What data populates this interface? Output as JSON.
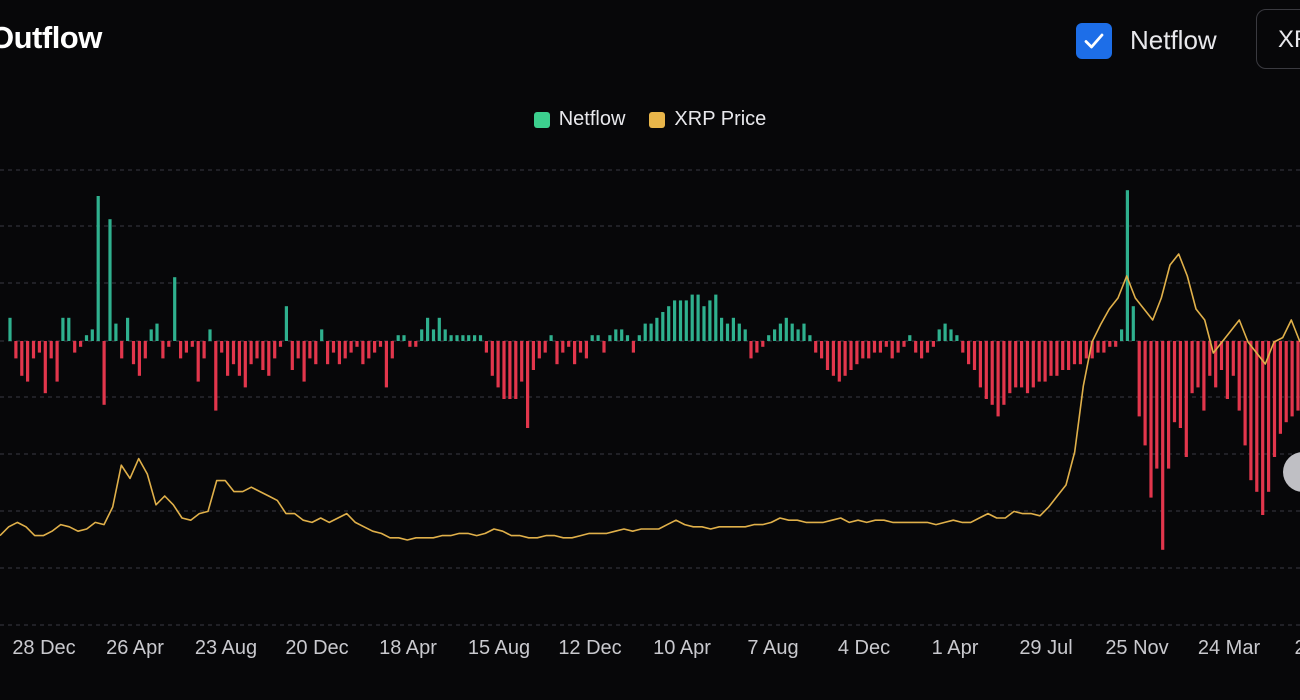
{
  "header": {
    "title": "Outflow",
    "checkbox_label": "Netflow",
    "checkbox_checked": true,
    "dropdown_value": "XRP"
  },
  "legend": [
    {
      "label": "Netflow",
      "color": "#3ccf8e"
    },
    {
      "label": "XRP Price",
      "color": "#e8b54a"
    }
  ],
  "colors": {
    "inflow": "#2fb08e",
    "outflow": "#e2364c",
    "price": "#e0b04a",
    "grid": "#3a3a42",
    "background": "#070709"
  },
  "chart_data": {
    "type": "bar",
    "title": "",
    "xlabel": "",
    "ylabel": "",
    "grid": true,
    "legend_position": "top-center",
    "x_tick_labels": [
      "28 Dec",
      "26 Apr",
      "23 Aug",
      "20 Dec",
      "18 Apr",
      "15 Aug",
      "12 Dec",
      "10 Apr",
      "7 Aug",
      "4 Dec",
      "1 Apr",
      "29 Jul",
      "25 Nov",
      "24 Mar",
      "2"
    ],
    "ylim": [
      -40,
      30
    ],
    "series": [
      {
        "name": "Netflow",
        "type": "bar",
        "values": [
          4,
          -3,
          -6,
          -7,
          -3,
          -2,
          -9,
          -3,
          -7,
          4,
          4,
          -2,
          -1,
          1,
          2,
          25,
          -11,
          21,
          3,
          -3,
          4,
          -4,
          -6,
          -3,
          2,
          3,
          -3,
          -1,
          11,
          -3,
          -2,
          -1,
          -7,
          -3,
          2,
          -12,
          -2,
          -6,
          -4,
          -6,
          -8,
          -4,
          -3,
          -5,
          -6,
          -3,
          -1,
          6,
          -5,
          -3,
          -7,
          -3,
          -4,
          2,
          -4,
          -2,
          -4,
          -3,
          -2,
          -1,
          -4,
          -3,
          -2,
          -1,
          -8,
          -3,
          1,
          1,
          -1,
          -1,
          2,
          4,
          2,
          4,
          2,
          1,
          1,
          1,
          1,
          1,
          1,
          -2,
          -6,
          -8,
          -10,
          -10,
          -10,
          -7,
          -15,
          -5,
          -3,
          -2,
          1,
          -4,
          -2,
          -1,
          -4,
          -2,
          -3,
          1,
          1,
          -2,
          1,
          2,
          2,
          1,
          -2,
          1,
          3,
          3,
          4,
          5,
          6,
          7,
          7,
          7,
          8,
          8,
          6,
          7,
          8,
          4,
          3,
          4,
          3,
          2,
          -3,
          -2,
          -1,
          1,
          2,
          3,
          4,
          3,
          2,
          3,
          1,
          -2,
          -3,
          -5,
          -6,
          -7,
          -6,
          -5,
          -4,
          -3,
          -3,
          -2,
          -2,
          -1,
          -3,
          -2,
          -1,
          1,
          -2,
          -3,
          -2,
          -1,
          2,
          3,
          2,
          1,
          -2,
          -4,
          -5,
          -8,
          -10,
          -11,
          -13,
          -11,
          -9,
          -8,
          -8,
          -9,
          -8,
          -7,
          -7,
          -6,
          -6,
          -5,
          -5,
          -4,
          -4,
          -3,
          -3,
          -2,
          -2,
          -1,
          -1,
          2,
          26,
          6,
          -13,
          -18,
          -27,
          -22,
          -36,
          -22,
          -14,
          -15,
          -20,
          -9,
          -8,
          -12,
          -6,
          -8,
          -5,
          -10,
          -6,
          -12,
          -18,
          -24,
          -26,
          -30,
          -26,
          -20,
          -16,
          -14,
          -13,
          -12
        ]
      },
      {
        "name": "XRP Price",
        "type": "line",
        "values": [
          0.42,
          0.46,
          0.48,
          0.46,
          0.42,
          0.42,
          0.44,
          0.47,
          0.46,
          0.44,
          0.45,
          0.48,
          0.47,
          0.55,
          0.74,
          0.68,
          0.77,
          0.7,
          0.56,
          0.6,
          0.56,
          0.5,
          0.49,
          0.52,
          0.53,
          0.67,
          0.67,
          0.62,
          0.62,
          0.64,
          0.62,
          0.6,
          0.58,
          0.52,
          0.52,
          0.49,
          0.48,
          0.5,
          0.48,
          0.5,
          0.52,
          0.48,
          0.46,
          0.44,
          0.43,
          0.41,
          0.41,
          0.4,
          0.41,
          0.41,
          0.41,
          0.42,
          0.42,
          0.43,
          0.43,
          0.42,
          0.43,
          0.45,
          0.44,
          0.42,
          0.42,
          0.41,
          0.41,
          0.42,
          0.42,
          0.41,
          0.41,
          0.42,
          0.43,
          0.43,
          0.43,
          0.44,
          0.45,
          0.44,
          0.45,
          0.45,
          0.45,
          0.47,
          0.49,
          0.47,
          0.46,
          0.46,
          0.45,
          0.46,
          0.46,
          0.46,
          0.46,
          0.47,
          0.47,
          0.48,
          0.5,
          0.49,
          0.49,
          0.48,
          0.48,
          0.48,
          0.49,
          0.5,
          0.48,
          0.49,
          0.48,
          0.49,
          0.49,
          0.48,
          0.48,
          0.48,
          0.48,
          0.48,
          0.47,
          0.48,
          0.49,
          0.48,
          0.48,
          0.5,
          0.52,
          0.5,
          0.5,
          0.53,
          0.52,
          0.52,
          0.51,
          0.55,
          0.6,
          0.65,
          0.8,
          1.1,
          1.3,
          1.38,
          1.45,
          1.5,
          1.6,
          1.5,
          1.45,
          1.4,
          1.5,
          1.65,
          1.7,
          1.6,
          1.45,
          1.4,
          1.25,
          1.3,
          1.35,
          1.4,
          1.3,
          1.25,
          1.2,
          1.3,
          1.32,
          1.4,
          1.3
        ]
      }
    ]
  }
}
